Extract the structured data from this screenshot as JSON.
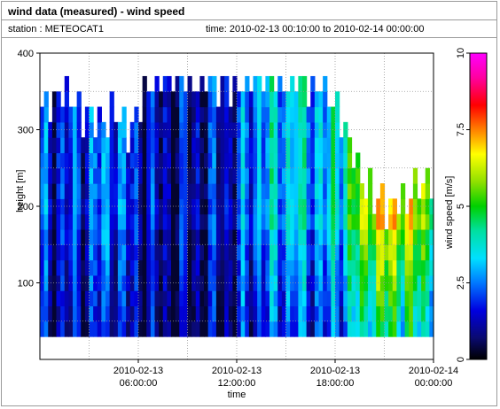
{
  "header": {
    "title": "wind data (measured) - wind speed",
    "station": "station : METEOCAT1",
    "time_range": "time: 2010-02-13 00:10:00 to 2010-02-14 00:00:00"
  },
  "chart_data": {
    "type": "heatmap",
    "title": "wind data (measured) - wind speed",
    "xlabel": "time",
    "ylabel": "height [m]",
    "colorbar_label": "wind speed [m/s]",
    "x_range_hours": [
      0,
      24
    ],
    "x_ticks": [
      {
        "hour": 6,
        "line1": "2010-02-13",
        "line2": "06:00:00"
      },
      {
        "hour": 12,
        "line1": "2010-02-13",
        "line2": "12:00:00"
      },
      {
        "hour": 18,
        "line1": "2010-02-13",
        "line2": "18:00:00"
      },
      {
        "hour": 24,
        "line1": "2010-02-14",
        "line2": "00:00:00"
      }
    ],
    "ylim": [
      0,
      400
    ],
    "y_ticks": [
      100,
      200,
      300,
      400
    ],
    "colorbar_range": [
      0,
      10
    ],
    "colorbar_ticks": [
      "0",
      "2.5",
      "5",
      "7.5",
      "10"
    ],
    "grid": true,
    "height_levels_m": [
      40,
      60,
      80,
      100,
      120,
      140,
      160,
      180,
      200,
      220,
      240,
      260,
      280,
      300,
      320,
      340,
      360
    ],
    "time_profile": {
      "hours": [
        0.5,
        1.5,
        2.5,
        3.5,
        4.5,
        5.5,
        6.5,
        7.5,
        8.5,
        9.5,
        10.5,
        11.5,
        12.5,
        13.5,
        14.5,
        15.5,
        16.5,
        17.5,
        18.5,
        19.5,
        20.5,
        21.5,
        22.5,
        23.5
      ],
      "speed_ms": [
        1.8,
        1.7,
        1.9,
        2.3,
        2.6,
        1.7,
        1.4,
        1.1,
        1.0,
        1.2,
        1.4,
        1.3,
        2.2,
        2.8,
        3.2,
        3.3,
        3.1,
        2.9,
        4.0,
        5.5,
        6.6,
        6.9,
        6.2,
        5.6
      ],
      "top_height_m": [
        335,
        355,
        320,
        310,
        320,
        300,
        360,
        365,
        365,
        365,
        365,
        360,
        365,
        365,
        365,
        365,
        360,
        355,
        300,
        245,
        210,
        200,
        210,
        230
      ]
    }
  }
}
